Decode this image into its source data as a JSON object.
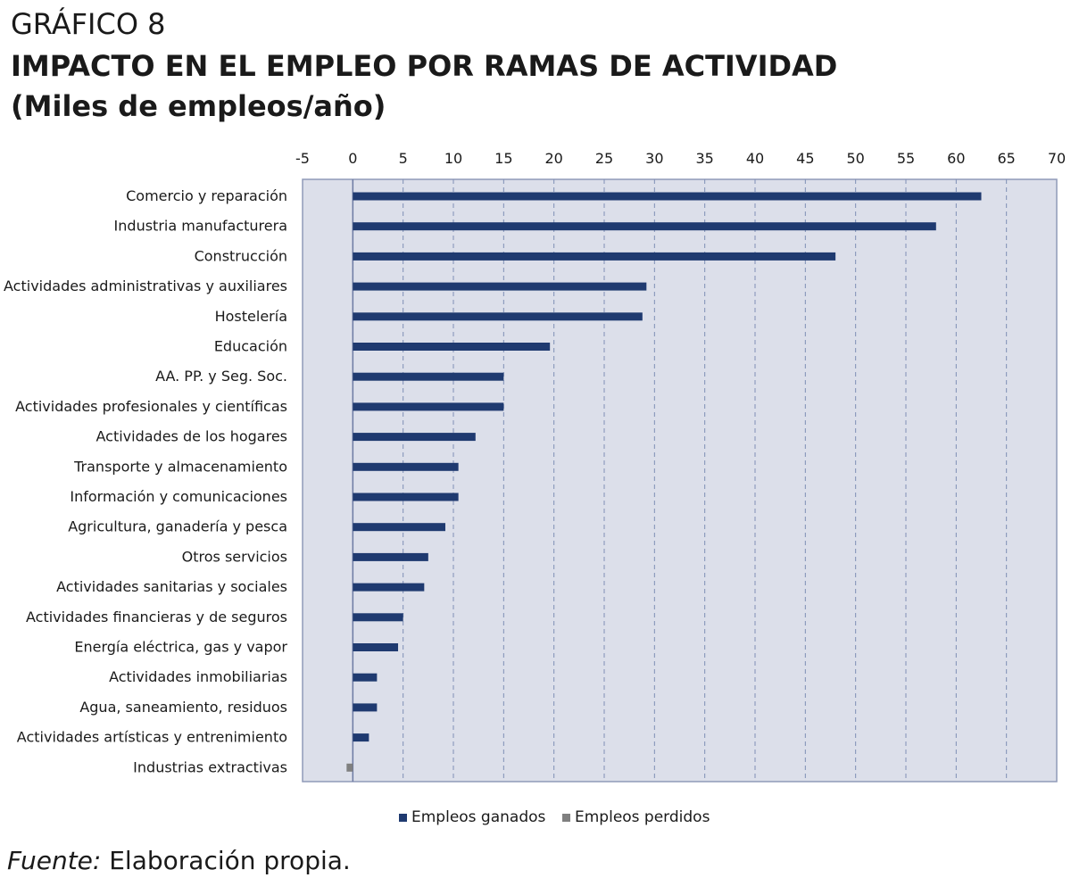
{
  "header": {
    "figure_label": "GRÁFICO 8",
    "title": "IMPACTO EN EL EMPLEO POR RAMAS DE ACTIVIDAD",
    "subtitle": "(Miles de empleos/año)"
  },
  "footer": {
    "source_label": "Fuente:",
    "source_text": "Elaboración propia."
  },
  "colors": {
    "gained": "#1f3a70",
    "lost": "#808080",
    "plot_bg": "#dcdfea",
    "grid": "#7f8fb5"
  },
  "chart_data": {
    "type": "bar",
    "orientation": "horizontal",
    "title": "IMPACTO EN EL EMPLEO POR RAMAS DE ACTIVIDAD",
    "subtitle": "(Miles de empleos/año)",
    "xlabel": "",
    "ylabel": "",
    "xlim": [
      -5,
      70
    ],
    "xticks": [
      -5,
      0,
      5,
      10,
      15,
      20,
      25,
      30,
      35,
      40,
      45,
      50,
      55,
      60,
      65,
      70
    ],
    "x_axis_position": "top",
    "grid": "vertical dashed",
    "legend_position": "bottom",
    "categories": [
      "Comercio y reparación",
      "Industria manufacturera",
      "Construcción",
      "Actividades administrativas y auxiliares",
      "Hostelería",
      "Educación",
      "AA. PP. y Seg. Soc.",
      "Actividades profesionales y científicas",
      "Actividades de los hogares",
      "Transporte y almacenamiento",
      "Información y comunicaciones",
      "Agricultura, ganadería y pesca",
      "Otros servicios",
      "Actividades sanitarias y sociales",
      "Actividades financieras y de seguros",
      "Energía eléctrica, gas y vapor",
      "Actividades inmobiliarias",
      "Agua, saneamiento, residuos",
      "Actividades artísticas y entrenimiento",
      "Industrias extractivas"
    ],
    "series": [
      {
        "name": "Empleos ganados",
        "color": "#1f3a70",
        "values": [
          62.5,
          58.0,
          48.0,
          29.2,
          28.8,
          19.6,
          15.0,
          15.0,
          12.2,
          10.5,
          10.5,
          9.2,
          7.5,
          7.1,
          5.0,
          4.5,
          2.4,
          2.4,
          1.6,
          0
        ]
      },
      {
        "name": "Empleos perdidos",
        "color": "#808080",
        "values": [
          0,
          0,
          0,
          0,
          0,
          0,
          0,
          0,
          0,
          0,
          0,
          0,
          0,
          0,
          0,
          0,
          0,
          0,
          0,
          -0.5
        ]
      }
    ]
  }
}
